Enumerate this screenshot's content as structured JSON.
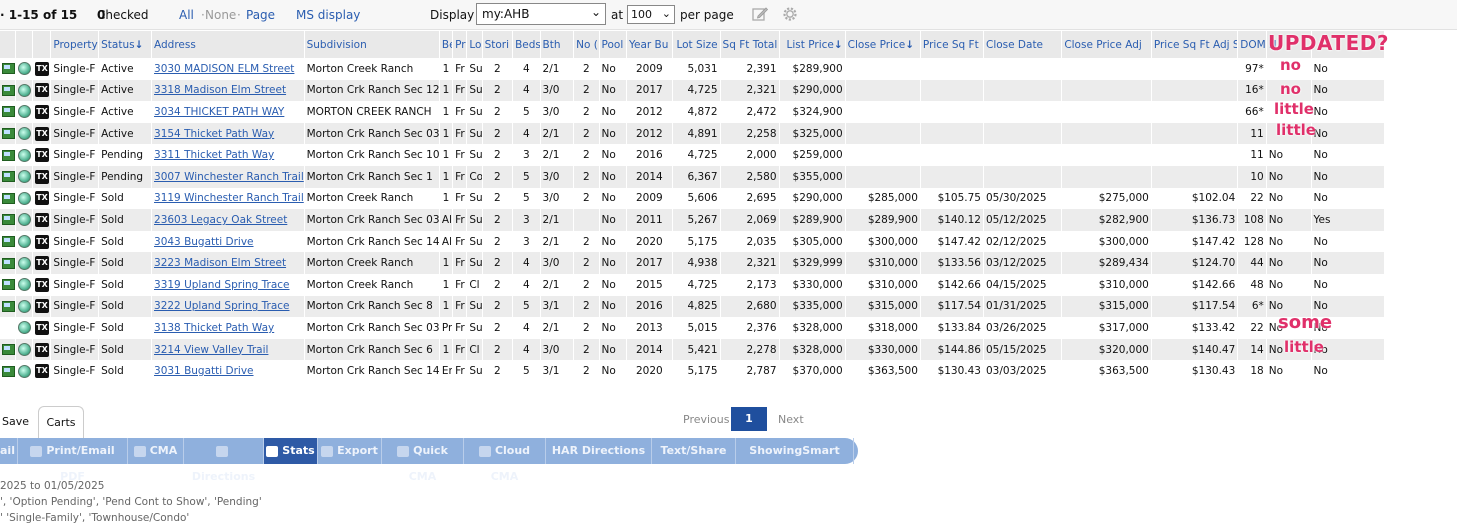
{
  "topbar": {
    "range": "· 1-15 of 15",
    "checked_label": "Checked",
    "checked_count": "0",
    "select_all": "All",
    "select_none": "None",
    "select_page": "Page",
    "dot": "·",
    "ms_display": "MS display",
    "display_label": "Display",
    "display_value": "my:AHB",
    "at_label": "at",
    "per_page_value": "100",
    "per_page_label": "per page"
  },
  "columns": [
    "",
    "",
    "",
    "Property",
    "Status",
    "Address",
    "Subdivision",
    "Be",
    "Pr",
    "Lo",
    "Stori",
    "Beds",
    "Bth",
    "No (",
    "Pool",
    "Year Bu",
    "Lot Size",
    "Sq Ft Total",
    "List Price",
    "Close Price",
    "Price Sq Ft",
    "Close Date",
    "Close Price Adj",
    "Price Sq Ft Adj S",
    "DOM",
    "N",
    ""
  ],
  "sorted_columns": {
    "status": "↓",
    "list_price": "↓",
    "close_price": "↓"
  },
  "rows": [
    {
      "type": "Single-F",
      "status": "Active",
      "address": "3030 MADISON ELM Street",
      "subdivision": "Morton Creek Ranch",
      "be": "1",
      "pr": "Fr",
      "lo": "Su",
      "stories": "2",
      "beds": "4",
      "bth": "2/1",
      "no": "2",
      "pool": "No",
      "year": "2009",
      "lot": "5,031",
      "sqft": "2,391",
      "list": "$289,900",
      "close": "",
      "psf": "",
      "cdate": "",
      "cadj": "",
      "psfadj": "",
      "dom": "97*",
      "n": "",
      "last": "No",
      "has_pic": true
    },
    {
      "type": "Single-F",
      "status": "Active",
      "address": "3318 Madison Elm Street",
      "subdivision": "Morton Crk Ranch Sec 12",
      "be": "1",
      "pr": "Fr",
      "lo": "Su",
      "stories": "2",
      "beds": "4",
      "bth": "3/0",
      "no": "2",
      "pool": "No",
      "year": "2017",
      "lot": "4,725",
      "sqft": "2,321",
      "list": "$290,000",
      "close": "",
      "psf": "",
      "cdate": "",
      "cadj": "",
      "psfadj": "",
      "dom": "16*",
      "n": "",
      "last": "No",
      "has_pic": true
    },
    {
      "type": "Single-F",
      "status": "Active",
      "address": "3034 THICKET PATH WAY",
      "subdivision": "MORTON CREEK RANCH",
      "be": "1",
      "pr": "Fr",
      "lo": "Su",
      "stories": "2",
      "beds": "5",
      "bth": "3/0",
      "no": "2",
      "pool": "No",
      "year": "2012",
      "lot": "4,872",
      "sqft": "2,472",
      "list": "$324,900",
      "close": "",
      "psf": "",
      "cdate": "",
      "cadj": "",
      "psfadj": "",
      "dom": "66*",
      "n": "",
      "last": "No",
      "has_pic": true
    },
    {
      "type": "Single-F",
      "status": "Active",
      "address": "3154 Thicket Path Way",
      "subdivision": "Morton Crk Ranch Sec 03",
      "be": "1",
      "pr": "Fr",
      "lo": "Su",
      "stories": "2",
      "beds": "4",
      "bth": "2/1",
      "no": "2",
      "pool": "No",
      "year": "2012",
      "lot": "4,891",
      "sqft": "2,258",
      "list": "$325,000",
      "close": "",
      "psf": "",
      "cdate": "",
      "cadj": "",
      "psfadj": "",
      "dom": "11",
      "n": "",
      "last": "No",
      "has_pic": true
    },
    {
      "type": "Single-F",
      "status": "Pending",
      "address": "3311 Thicket Path Way",
      "subdivision": "Morton Crk Ranch Sec 10",
      "be": "1",
      "pr": "Fr",
      "lo": "Su",
      "stories": "2",
      "beds": "3",
      "bth": "2/1",
      "no": "2",
      "pool": "No",
      "year": "2016",
      "lot": "4,725",
      "sqft": "2,000",
      "list": "$259,000",
      "close": "",
      "psf": "",
      "cdate": "",
      "cadj": "",
      "psfadj": "",
      "dom": "11",
      "n": "No",
      "last": "No",
      "has_pic": true
    },
    {
      "type": "Single-F",
      "status": "Pending",
      "address": "3007 Winchester Ranch Trail",
      "subdivision": "Morton Crk Ranch Sec 1",
      "be": "1",
      "pr": "Fr",
      "lo": "Co",
      "stories": "2",
      "beds": "5",
      "bth": "3/0",
      "no": "2",
      "pool": "No",
      "year": "2014",
      "lot": "6,367",
      "sqft": "2,580",
      "list": "$355,000",
      "close": "",
      "psf": "",
      "cdate": "",
      "cadj": "",
      "psfadj": "",
      "dom": "10",
      "n": "No",
      "last": "No",
      "has_pic": true
    },
    {
      "type": "Single-F",
      "status": "Sold",
      "address": "3119 Winchester Ranch Trail",
      "subdivision": "Morton Creek Ranch",
      "be": "1",
      "pr": "Fr",
      "lo": "Su",
      "stories": "2",
      "beds": "5",
      "bth": "3/0",
      "no": "2",
      "pool": "No",
      "year": "2009",
      "lot": "5,606",
      "sqft": "2,695",
      "list": "$290,000",
      "close": "$285,000",
      "psf": "$105.75",
      "cdate": "05/30/2025",
      "cadj": "$275,000",
      "psfadj": "$102.04",
      "dom": "22",
      "n": "No",
      "last": "No",
      "has_pic": true
    },
    {
      "type": "Single-F",
      "status": "Sold",
      "address": "23603 Legacy Oak Street",
      "subdivision": "Morton Crk Ranch Sec 03",
      "be": "Al",
      "pr": "Fr",
      "lo": "Su",
      "stories": "2",
      "beds": "3",
      "bth": "2/1",
      "no": "",
      "pool": "No",
      "year": "2011",
      "lot": "5,267",
      "sqft": "2,069",
      "list": "$289,900",
      "close": "$289,900",
      "psf": "$140.12",
      "cdate": "05/12/2025",
      "cadj": "$282,900",
      "psfadj": "$136.73",
      "dom": "108",
      "n": "No",
      "last": "Yes",
      "has_pic": true
    },
    {
      "type": "Single-F",
      "status": "Sold",
      "address": "3043 Bugatti Drive",
      "subdivision": "Morton Crk Ranch Sec 14",
      "be": "Al",
      "pr": "Fr",
      "lo": "Su",
      "stories": "2",
      "beds": "3",
      "bth": "2/1",
      "no": "2",
      "pool": "No",
      "year": "2020",
      "lot": "5,175",
      "sqft": "2,035",
      "list": "$305,000",
      "close": "$300,000",
      "psf": "$147.42",
      "cdate": "02/12/2025",
      "cadj": "$300,000",
      "psfadj": "$147.42",
      "dom": "128",
      "n": "No",
      "last": "No",
      "has_pic": true
    },
    {
      "type": "Single-F",
      "status": "Sold",
      "address": "3223 Madison Elm Street",
      "subdivision": "Morton Creek Ranch",
      "be": "1",
      "pr": "Fr",
      "lo": "Su",
      "stories": "2",
      "beds": "4",
      "bth": "3/0",
      "no": "2",
      "pool": "No",
      "year": "2017",
      "lot": "4,938",
      "sqft": "2,321",
      "list": "$329,999",
      "close": "$310,000",
      "psf": "$133.56",
      "cdate": "03/12/2025",
      "cadj": "$289,434",
      "psfadj": "$124.70",
      "dom": "44",
      "n": "No",
      "last": "No",
      "has_pic": true
    },
    {
      "type": "Single-F",
      "status": "Sold",
      "address": "3319 Upland Spring Trace",
      "subdivision": "Morton Creek Ranch",
      "be": "1",
      "pr": "Fr",
      "lo": "Cl",
      "stories": "2",
      "beds": "4",
      "bth": "2/1",
      "no": "2",
      "pool": "No",
      "year": "2015",
      "lot": "4,725",
      "sqft": "2,173",
      "list": "$330,000",
      "close": "$310,000",
      "psf": "$142.66",
      "cdate": "04/15/2025",
      "cadj": "$310,000",
      "psfadj": "$142.66",
      "dom": "48",
      "n": "No",
      "last": "No",
      "has_pic": true
    },
    {
      "type": "Single-F",
      "status": "Sold",
      "address": "3222 Upland Spring Trace",
      "subdivision": "Morton Crk Ranch Sec 8",
      "be": "1",
      "pr": "Fr",
      "lo": "Su",
      "stories": "2",
      "beds": "5",
      "bth": "3/1",
      "no": "2",
      "pool": "No",
      "year": "2016",
      "lot": "4,825",
      "sqft": "2,680",
      "list": "$335,000",
      "close": "$315,000",
      "psf": "$117.54",
      "cdate": "01/31/2025",
      "cadj": "$315,000",
      "psfadj": "$117.54",
      "dom": "6*",
      "n": "No",
      "last": "No",
      "has_pic": true
    },
    {
      "type": "Single-F",
      "status": "Sold",
      "address": "3138 Thicket Path Way",
      "subdivision": "Morton Crk Ranch Sec 03",
      "be": "Pr",
      "pr": "Fr",
      "lo": "Su",
      "stories": "2",
      "beds": "4",
      "bth": "2/1",
      "no": "2",
      "pool": "No",
      "year": "2013",
      "lot": "5,015",
      "sqft": "2,376",
      "list": "$328,000",
      "close": "$318,000",
      "psf": "$133.84",
      "cdate": "03/26/2025",
      "cadj": "$317,000",
      "psfadj": "$133.42",
      "dom": "22",
      "n": "No",
      "last": "No",
      "has_pic": false
    },
    {
      "type": "Single-F",
      "status": "Sold",
      "address": "3214 View Valley Trail",
      "subdivision": "Morton Crk Ranch Sec 6",
      "be": "1",
      "pr": "Fr",
      "lo": "Cl",
      "stories": "2",
      "beds": "4",
      "bth": "3/0",
      "no": "2",
      "pool": "No",
      "year": "2014",
      "lot": "5,421",
      "sqft": "2,278",
      "list": "$328,000",
      "close": "$330,000",
      "psf": "$144.86",
      "cdate": "05/15/2025",
      "cadj": "$320,000",
      "psfadj": "$140.47",
      "dom": "14",
      "n": "No",
      "last": "No",
      "has_pic": true
    },
    {
      "type": "Single-F",
      "status": "Sold",
      "address": "3031 Bugatti Drive",
      "subdivision": "Morton Crk Ranch Sec 14",
      "be": "Er",
      "pr": "Fr",
      "lo": "Su",
      "stories": "2",
      "beds": "5",
      "bth": "3/1",
      "no": "2",
      "pool": "No",
      "year": "2020",
      "lot": "5,175",
      "sqft": "2,787",
      "list": "$370,000",
      "close": "$363,500",
      "psf": "$130.43",
      "cdate": "03/03/2025",
      "cadj": "$363,500",
      "psfadj": "$130.43",
      "dom": "18",
      "n": "No",
      "last": "No",
      "has_pic": true
    }
  ],
  "tx_label": "TX",
  "annotations": {
    "updated": "UPDATED?",
    "notes": [
      "no",
      "no",
      "little",
      "little",
      "some",
      "little"
    ]
  },
  "tabs": {
    "save": "Save",
    "carts": "Carts"
  },
  "pager": {
    "previous": "Previous",
    "current": "1",
    "next": "Next"
  },
  "actions": [
    "ail",
    "Print/Email PDF",
    "CMA",
    "Directions",
    "Stats",
    "Export",
    "Quick CMA",
    "Cloud CMA",
    "HAR Directions",
    "Text/Share",
    "ShowingSmart"
  ],
  "active_action": "Stats",
  "footer_lines": [
    "2025 to 01/05/2025",
    "', 'Option Pending', 'Pend Cont to Show', 'Pending'",
    "' 'Single-Family', 'Townhouse/Condo'"
  ],
  "colors": {
    "link": "#2a5db0",
    "header_bg": "#e9e9e9",
    "active_action": "#2e5aa6",
    "action_bar": "#8fb0dd",
    "annotation": "#e0306a"
  }
}
